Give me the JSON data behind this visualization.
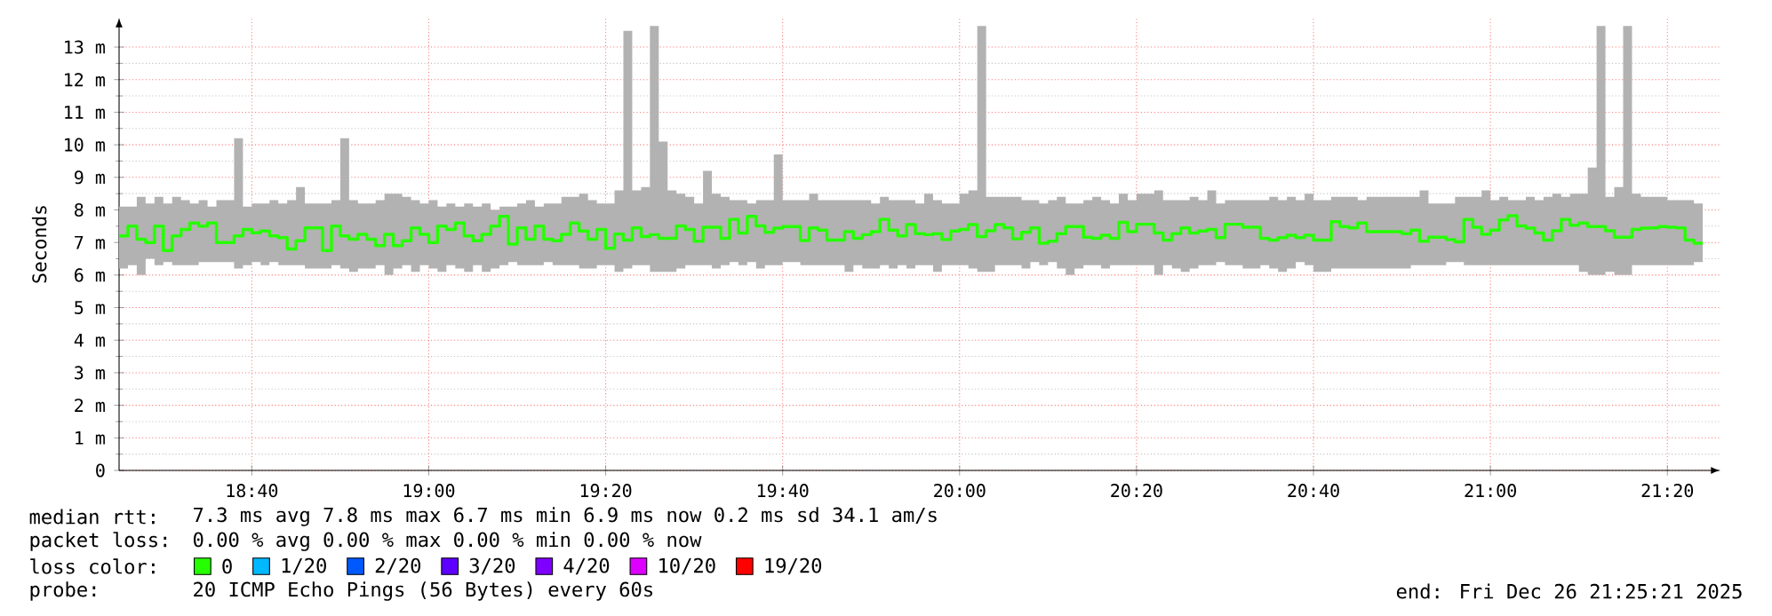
{
  "chart_data": {
    "type": "step",
    "ylabel": "Seconds",
    "xlim": [
      "2025-12-26T18:25",
      "2025-12-26T21:26"
    ],
    "xticks": [
      {
        "value": "2025-12-26T18:40",
        "label": "18:40"
      },
      {
        "value": "2025-12-26T19:00",
        "label": "19:00"
      },
      {
        "value": "2025-12-26T19:20",
        "label": "19:20"
      },
      {
        "value": "2025-12-26T19:40",
        "label": "19:40"
      },
      {
        "value": "2025-12-26T20:00",
        "label": "20:00"
      },
      {
        "value": "2025-12-26T20:20",
        "label": "20:20"
      },
      {
        "value": "2025-12-26T20:40",
        "label": "20:40"
      },
      {
        "value": "2025-12-26T21:00",
        "label": "21:00"
      },
      {
        "value": "2025-12-26T21:20",
        "label": "21:20"
      }
    ],
    "ylim": [
      0,
      13.9
    ],
    "yticks": [
      0,
      {
        "value": 1,
        "label": "1 m"
      },
      {
        "value": 2,
        "label": "2 m"
      },
      {
        "value": 3,
        "label": "3 m"
      },
      {
        "value": 4,
        "label": "4 m"
      },
      {
        "value": 5,
        "label": "5 m"
      },
      {
        "value": 6,
        "label": "6 m"
      },
      {
        "value": 7,
        "label": "7 m"
      },
      {
        "value": 8,
        "label": "8 m"
      },
      {
        "value": 9,
        "label": "9 m"
      },
      {
        "value": 10,
        "label": "10 m"
      },
      {
        "value": 11,
        "label": "11 m"
      },
      {
        "value": 12,
        "label": "12 m"
      },
      {
        "value": 13,
        "label": "13 m"
      }
    ],
    "grid": true,
    "legend": "bottom",
    "legend_title": "loss color:",
    "annotations": [
      "median rtt:",
      "7.3 ms avg  7.8 ms max  6.7 ms min  6.9 ms now  0.2 ms sd  34.1   am/s",
      "packet loss:",
      "0.00 % avg  0.00 % max  0.00 % min  0.00 % now",
      "probe:",
      "20 ICMP Echo Pings (56 Bytes) every 60s",
      "end: Fri Dec 26 21:25:21 2025"
    ],
    "series": [
      {
        "name": "0",
        "color": "#26ff00",
        "x": [
          "2025-12-26T18:25",
          "2025-12-26T18:26",
          "2025-12-26T18:27",
          "2025-12-26T18:28",
          "2025-12-26T18:29",
          "2025-12-26T18:30",
          "2025-12-26T18:31",
          "2025-12-26T18:32",
          "2025-12-26T18:33",
          "2025-12-26T18:34",
          "2025-12-26T18:35",
          "2025-12-26T18:36",
          "2025-12-26T18:38",
          "2025-12-26T18:39",
          "2025-12-26T18:40",
          "2025-12-26T18:41",
          "2025-12-26T18:42",
          "2025-12-26T18:43",
          "2025-12-26T18:44",
          "2025-12-26T18:45",
          "2025-12-26T18:46",
          "2025-12-26T18:48",
          "2025-12-26T18:49",
          "2025-12-26T18:50",
          "2025-12-26T18:51",
          "2025-12-26T18:52",
          "2025-12-26T18:53",
          "2025-12-26T18:54",
          "2025-12-26T18:55",
          "2025-12-26T18:56",
          "2025-12-26T18:57",
          "2025-12-26T18:58",
          "2025-12-26T18:59",
          "2025-12-26T19:00",
          "2025-12-26T19:01",
          "2025-12-26T19:02",
          "2025-12-26T19:03",
          "2025-12-26T19:04",
          "2025-12-26T19:05",
          "2025-12-26T19:06",
          "2025-12-26T19:07",
          "2025-12-26T19:08",
          "2025-12-26T19:09",
          "2025-12-26T19:10",
          "2025-12-26T19:11",
          "2025-12-26T19:12",
          "2025-12-26T19:13",
          "2025-12-26T19:14",
          "2025-12-26T19:15",
          "2025-12-26T19:16",
          "2025-12-26T19:17",
          "2025-12-26T19:18",
          "2025-12-26T19:19",
          "2025-12-26T19:20",
          "2025-12-26T19:21",
          "2025-12-26T19:22",
          "2025-12-26T19:23",
          "2025-12-26T19:24",
          "2025-12-26T19:25",
          "2025-12-26T19:26",
          "2025-12-26T19:27",
          "2025-12-26T19:28",
          "2025-12-26T19:29",
          "2025-12-26T19:30",
          "2025-12-26T19:31",
          "2025-12-26T19:32",
          "2025-12-26T19:33",
          "2025-12-26T19:34",
          "2025-12-26T19:35",
          "2025-12-26T19:36",
          "2025-12-26T19:37",
          "2025-12-26T19:38",
          "2025-12-26T19:39",
          "2025-12-26T19:40",
          "2025-12-26T19:42",
          "2025-12-26T19:43",
          "2025-12-26T19:44",
          "2025-12-26T19:45",
          "2025-12-26T19:47",
          "2025-12-26T19:48",
          "2025-12-26T19:49",
          "2025-12-26T19:50",
          "2025-12-26T19:51",
          "2025-12-26T19:52",
          "2025-12-26T19:53",
          "2025-12-26T19:54",
          "2025-12-26T19:55",
          "2025-12-26T19:56",
          "2025-12-26T19:57",
          "2025-12-26T19:58",
          "2025-12-26T19:59",
          "2025-12-26T20:00",
          "2025-12-26T20:01",
          "2025-12-26T20:02",
          "2025-12-26T20:03",
          "2025-12-26T20:04",
          "2025-12-26T20:05",
          "2025-12-26T20:06",
          "2025-12-26T20:07",
          "2025-12-26T20:08",
          "2025-12-26T20:09",
          "2025-12-26T20:10",
          "2025-12-26T20:11",
          "2025-12-26T20:12",
          "2025-12-26T20:13",
          "2025-12-26T20:14",
          "2025-12-26T20:15",
          "2025-12-26T20:16",
          "2025-12-26T20:17",
          "2025-12-26T20:18",
          "2025-12-26T20:19",
          "2025-12-26T20:20",
          "2025-12-26T20:22",
          "2025-12-26T20:23",
          "2025-12-26T20:24",
          "2025-12-26T20:25",
          "2025-12-26T20:26",
          "2025-12-26T20:27",
          "2025-12-26T20:28",
          "2025-12-26T20:29",
          "2025-12-26T20:30",
          "2025-12-26T20:32",
          "2025-12-26T20:34",
          "2025-12-26T20:35",
          "2025-12-26T20:36",
          "2025-12-26T20:37",
          "2025-12-26T20:38",
          "2025-12-26T20:39",
          "2025-12-26T20:40",
          "2025-12-26T20:42",
          "2025-12-26T20:43",
          "2025-12-26T20:44",
          "2025-12-26T20:45",
          "2025-12-26T20:46",
          "2025-12-26T20:50",
          "2025-12-26T20:51",
          "2025-12-26T20:52",
          "2025-12-26T20:53",
          "2025-12-26T20:55",
          "2025-12-26T20:56",
          "2025-12-26T20:57",
          "2025-12-26T20:58",
          "2025-12-26T20:59",
          "2025-12-26T21:00",
          "2025-12-26T21:01",
          "2025-12-26T21:02",
          "2025-12-26T21:03",
          "2025-12-26T21:04",
          "2025-12-26T21:05",
          "2025-12-26T21:06",
          "2025-12-26T21:07",
          "2025-12-26T21:08",
          "2025-12-26T21:09",
          "2025-12-26T21:10",
          "2025-12-26T21:11",
          "2025-12-26T21:12",
          "2025-12-26T21:13",
          "2025-12-26T21:14",
          "2025-12-26T21:15",
          "2025-12-26T21:16",
          "2025-12-26T21:17",
          "2025-12-26T21:18",
          "2025-12-26T21:19",
          "2025-12-26T21:20",
          "2025-12-26T21:21",
          "2025-12-26T21:22",
          "2025-12-26T21:23",
          "2025-12-26T21:24"
        ],
        "values": [
          7.2,
          7.5,
          7.1,
          7.0,
          7.5,
          6.75,
          7.2,
          7.4,
          7.6,
          7.5,
          7.6,
          7.0,
          7.2,
          7.4,
          7.3,
          7.35,
          7.2,
          7.15,
          6.8,
          7.05,
          7.45,
          6.75,
          7.5,
          7.2,
          7.1,
          7.25,
          7.1,
          6.9,
          7.25,
          6.9,
          7.05,
          7.45,
          7.25,
          7.0,
          7.5,
          7.4,
          7.6,
          7.2,
          7.05,
          7.25,
          7.5,
          7.8,
          6.95,
          7.45,
          7.1,
          7.5,
          7.1,
          7.05,
          7.25,
          7.6,
          7.35,
          7.1,
          7.4,
          6.82,
          7.26,
          7.07,
          7.45,
          7.18,
          7.24,
          7.13,
          7.13,
          7.51,
          7.4,
          7.04,
          7.47,
          7.47,
          7.13,
          7.71,
          7.29,
          7.8,
          7.51,
          7.31,
          7.44,
          7.49,
          7.06,
          7.45,
          7.38,
          7.07,
          7.33,
          7.13,
          7.24,
          7.33,
          7.71,
          7.38,
          7.2,
          7.55,
          7.27,
          7.24,
          7.27,
          7.09,
          7.35,
          7.4,
          7.55,
          7.18,
          7.36,
          7.55,
          7.45,
          7.11,
          7.31,
          7.45,
          6.98,
          7.04,
          7.27,
          7.49,
          7.49,
          7.16,
          7.13,
          7.22,
          7.13,
          7.62,
          7.33,
          7.56,
          7.29,
          7.07,
          7.27,
          7.45,
          7.29,
          7.35,
          7.4,
          7.15,
          7.56,
          7.47,
          7.13,
          7.07,
          7.15,
          7.22,
          7.15,
          7.22,
          7.07,
          7.64,
          7.49,
          7.45,
          7.6,
          7.33,
          7.27,
          7.38,
          7.04,
          7.16,
          7.09,
          7.02,
          7.71,
          7.47,
          7.25,
          7.38,
          7.69,
          7.82,
          7.51,
          7.44,
          7.29,
          7.07,
          7.36,
          7.71,
          7.53,
          7.6,
          7.49,
          7.49,
          7.36,
          7.16,
          7.16,
          7.4,
          7.44,
          7.45,
          7.49,
          7.47,
          7.45,
          7.07,
          6.98,
          6.98
        ],
        "lower": [
          6.2,
          6.3,
          6.0,
          6.5,
          6.3,
          6.4,
          6.3,
          6.3,
          6.3,
          6.4,
          6.4,
          6.4,
          6.2,
          6.3,
          6.4,
          6.3,
          6.4,
          6.3,
          6.3,
          6.3,
          6.2,
          6.2,
          6.3,
          6.2,
          6.1,
          6.2,
          6.2,
          6.3,
          6.0,
          6.2,
          6.3,
          6.1,
          6.3,
          6.2,
          6.1,
          6.3,
          6.2,
          6.1,
          6.3,
          6.1,
          6.2,
          6.3,
          6.4,
          6.3,
          6.3,
          6.3,
          6.4,
          6.3,
          6.3,
          6.3,
          6.2,
          6.2,
          6.3,
          6.3,
          6.1,
          6.2,
          6.3,
          6.3,
          6.1,
          6.1,
          6.1,
          6.2,
          6.3,
          6.3,
          6.3,
          6.2,
          6.3,
          6.4,
          6.3,
          6.4,
          6.2,
          6.3,
          6.3,
          6.4,
          6.3,
          6.3,
          6.3,
          6.3,
          6.1,
          6.3,
          6.2,
          6.2,
          6.3,
          6.2,
          6.3,
          6.2,
          6.3,
          6.3,
          6.1,
          6.3,
          6.3,
          6.3,
          6.2,
          6.1,
          6.1,
          6.3,
          6.3,
          6.3,
          6.2,
          6.4,
          6.3,
          6.4,
          6.2,
          6.0,
          6.2,
          6.3,
          6.3,
          6.2,
          6.3,
          6.3,
          6.3,
          6.3,
          6.0,
          6.3,
          6.2,
          6.1,
          6.2,
          6.3,
          6.3,
          6.4,
          6.3,
          6.2,
          6.3,
          6.2,
          6.1,
          6.2,
          6.4,
          6.3,
          6.1,
          6.2,
          6.2,
          6.2,
          6.2,
          6.2,
          6.2,
          6.3,
          6.3,
          6.3,
          6.4,
          6.4,
          6.3,
          6.3,
          6.3,
          6.3,
          6.3,
          6.3,
          6.3,
          6.3,
          6.3,
          6.3,
          6.3,
          6.3,
          6.3,
          6.1,
          6.0,
          6.0,
          6.1,
          6.0,
          6.0,
          6.3,
          6.3,
          6.3,
          6.3,
          6.3,
          6.3,
          6.3,
          6.4,
          6.4
        ],
        "upper": [
          8.1,
          8.1,
          8.4,
          8.2,
          8.4,
          8.2,
          8.4,
          8.3,
          8.2,
          8.3,
          8.1,
          8.3,
          10.2,
          8.1,
          8.2,
          8.2,
          8.3,
          8.2,
          8.3,
          8.7,
          8.2,
          8.2,
          8.3,
          10.2,
          8.3,
          8.2,
          8.2,
          8.3,
          8.5,
          8.5,
          8.4,
          8.3,
          8.2,
          8.3,
          8.1,
          8.2,
          8.1,
          8.2,
          8.1,
          8.2,
          8.0,
          8.1,
          8.1,
          8.2,
          8.3,
          8.1,
          8.2,
          8.2,
          8.4,
          8.4,
          8.5,
          8.3,
          8.2,
          8.2,
          8.6,
          13.5,
          8.6,
          8.7,
          13.65,
          10.1,
          8.6,
          8.5,
          8.4,
          8.2,
          9.2,
          8.5,
          8.4,
          8.3,
          8.3,
          8.2,
          8.3,
          8.3,
          9.7,
          8.3,
          8.3,
          8.5,
          8.3,
          8.3,
          8.3,
          8.3,
          8.3,
          8.2,
          8.4,
          8.3,
          8.3,
          8.3,
          8.2,
          8.5,
          8.3,
          8.2,
          8.2,
          8.5,
          8.6,
          13.65,
          8.4,
          8.4,
          8.4,
          8.4,
          8.3,
          8.3,
          8.2,
          8.3,
          8.4,
          8.2,
          8.2,
          8.3,
          8.4,
          8.3,
          8.2,
          8.5,
          8.3,
          8.5,
          8.6,
          8.3,
          8.3,
          8.3,
          8.4,
          8.3,
          8.6,
          8.2,
          8.3,
          8.3,
          8.3,
          8.4,
          8.3,
          8.4,
          8.3,
          8.5,
          8.3,
          8.4,
          8.4,
          8.4,
          8.3,
          8.4,
          8.4,
          8.4,
          8.6,
          8.2,
          8.2,
          8.4,
          8.4,
          8.4,
          8.6,
          8.3,
          8.4,
          8.3,
          8.3,
          8.4,
          8.3,
          8.4,
          8.5,
          8.4,
          8.5,
          8.5,
          9.3,
          13.65,
          8.4,
          8.7,
          13.65,
          8.5,
          8.4,
          8.4,
          8.4,
          8.3,
          8.3,
          8.3,
          8.2,
          8.2
        ]
      },
      {
        "name": "1/20",
        "color": "#00b8ff"
      },
      {
        "name": "2/20",
        "color": "#0059ff"
      },
      {
        "name": "3/20",
        "color": "#5e00ff"
      },
      {
        "name": "4/20",
        "color": "#7e00ff"
      },
      {
        "name": "10/20",
        "color": "#dd00ff"
      },
      {
        "name": "19/20",
        "color": "#ff0000"
      }
    ]
  }
}
